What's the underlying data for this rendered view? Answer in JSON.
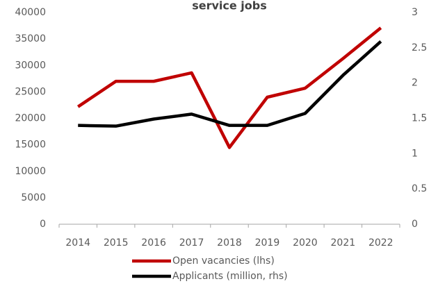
{
  "chart_data": {
    "type": "line",
    "title": "service jobs",
    "categories": [
      "2014",
      "2015",
      "2016",
      "2017",
      "2018",
      "2019",
      "2020",
      "2021",
      "2022"
    ],
    "series": [
      {
        "name": "Open vacancies (lhs)",
        "color": "#c00000",
        "values": [
          22200,
          27000,
          27000,
          28600,
          14500,
          24000,
          25700,
          31300,
          37100
        ]
      },
      {
        "name": "Applicants (million, rhs)",
        "color": "#000000",
        "axis": "y2",
        "values": [
          1.4,
          1.39,
          1.49,
          1.56,
          1.4,
          1.4,
          1.57,
          2.11,
          2.59
        ]
      }
    ],
    "ylim": [
      0,
      40000
    ],
    "yticks": [
      0,
      5000,
      10000,
      15000,
      20000,
      25000,
      30000,
      35000,
      40000
    ],
    "y2lim": [
      0,
      3
    ],
    "y2ticks": [
      0,
      0.5,
      1,
      1.5,
      2,
      2.5,
      3
    ],
    "legend": "bottom"
  }
}
